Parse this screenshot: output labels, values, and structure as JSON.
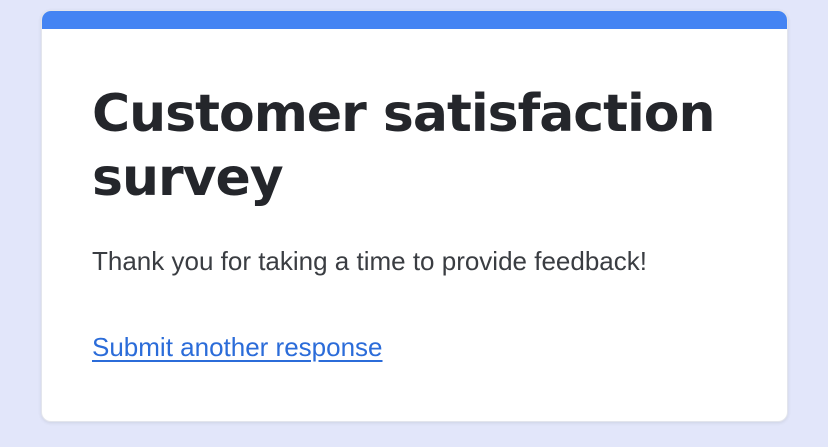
{
  "page": {
    "background_color": "#e2e6fa"
  },
  "card": {
    "accent_bar_color": "#4484f3",
    "title": "Customer satisfaction survey",
    "title_lines": [
      "Customer satisfaction",
      "survey"
    ],
    "subtitle": "Thank you for taking a time to provide feedback!",
    "link": {
      "label": "Submit another response",
      "color": "#2b6cd9"
    }
  }
}
